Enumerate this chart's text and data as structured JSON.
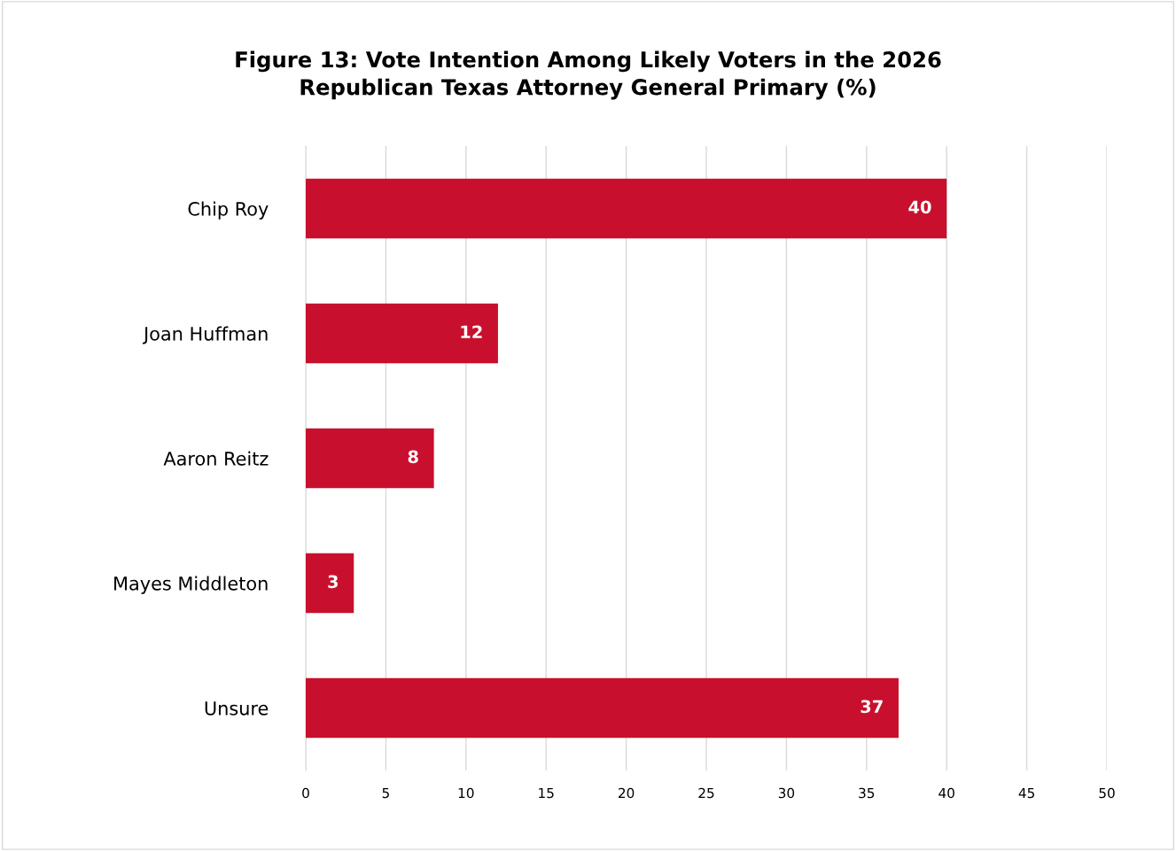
{
  "chart_data": {
    "type": "bar",
    "orientation": "horizontal",
    "title": "Figure 13: Vote Intention Among Likely Voters in the 2026\nRepublican Texas Attorney General Primary (%)",
    "categories": [
      "Chip Roy",
      "Joan Huffman",
      "Aaron Reitz",
      "Mayes Middleton",
      "Unsure"
    ],
    "values": [
      40,
      12,
      8,
      3,
      37
    ],
    "color": "#c8102e",
    "xlim": [
      0,
      50
    ],
    "xticks": [
      0,
      5,
      10,
      15,
      20,
      25,
      30,
      35,
      40,
      45,
      50
    ],
    "grid": "x",
    "data_labels": true
  }
}
